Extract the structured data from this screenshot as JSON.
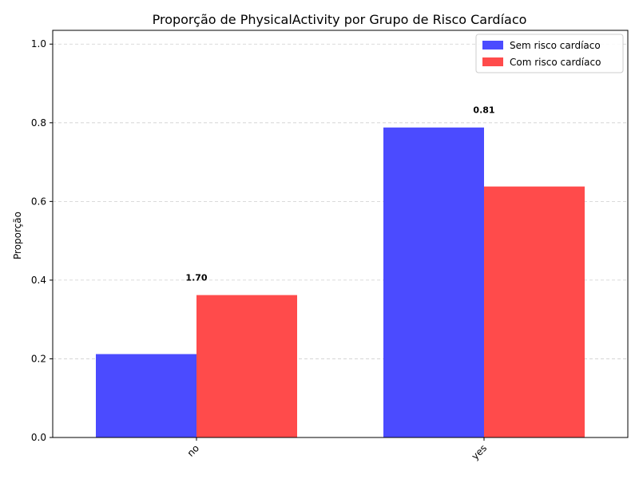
{
  "chart_data": {
    "type": "bar",
    "title": "Proporção de PhysicalActivity por Grupo de Risco Cardíaco",
    "xlabel": "",
    "ylabel": "Proporção",
    "categories": [
      "no",
      "yes"
    ],
    "series": [
      {
        "name": "Sem risco cardíaco",
        "values": [
          0.212,
          0.788
        ],
        "color": "#4b4bff"
      },
      {
        "name": "Com risco cardíaco",
        "values": [
          0.362,
          0.638
        ],
        "color": "#ff4b4b"
      }
    ],
    "annotations": [
      {
        "category": "no",
        "text": "1.70"
      },
      {
        "category": "yes",
        "text": "0.81"
      }
    ],
    "ylim": [
      0,
      1.035
    ],
    "yticks": [
      0.0,
      0.2,
      0.4,
      0.6,
      0.8,
      1.0
    ],
    "ytick_labels": [
      "0.0",
      "0.2",
      "0.4",
      "0.6",
      "0.8",
      "1.0"
    ],
    "grid": "y-dashed",
    "legend_position": "top-right"
  }
}
